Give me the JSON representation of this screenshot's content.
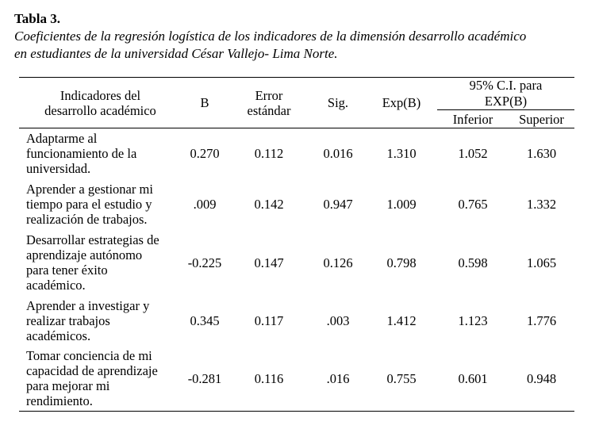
{
  "table": {
    "label": "Tabla 3.",
    "caption_line1": "Coeficientes de la regresión logística de los indicadores de la dimensión desarrollo académico",
    "caption_line2": "en estudiantes de la universidad César Vallejo- Lima Norte.",
    "headers": {
      "indicator_line1": "Indicadores del",
      "indicator_line2": "desarrollo académico",
      "b": "B",
      "error_line1": "Error",
      "error_line2": "estándar",
      "sig": "Sig.",
      "expb": "Exp(B)",
      "ci_line1": "95% C.I. para",
      "ci_line2": "EXP(B)",
      "inferior": "Inferior",
      "superior": "Superior"
    },
    "rows": [
      {
        "indicator_lines": [
          "Adaptarme al",
          "funcionamiento de la",
          "universidad."
        ],
        "b": "0.270",
        "error": "0.112",
        "sig": "0.016",
        "expb": "1.310",
        "inferior": "1.052",
        "superior": "1.630"
      },
      {
        "indicator_lines": [
          "Aprender a gestionar mi",
          "tiempo para el estudio y",
          "realización de trabajos."
        ],
        "b": ".009",
        "error": "0.142",
        "sig": "0.947",
        "expb": "1.009",
        "inferior": "0.765",
        "superior": "1.332"
      },
      {
        "indicator_lines": [
          "Desarrollar estrategias de",
          "aprendizaje autónomo",
          "para tener éxito",
          "académico."
        ],
        "b": "-0.225",
        "error": "0.147",
        "sig": "0.126",
        "expb": "0.798",
        "inferior": "0.598",
        "superior": "1.065"
      },
      {
        "indicator_lines": [
          "Aprender a investigar y",
          "realizar trabajos",
          "académicos."
        ],
        "b": "0.345",
        "error": "0.117",
        "sig": ".003",
        "expb": "1.412",
        "inferior": "1.123",
        "superior": "1.776"
      },
      {
        "indicator_lines": [
          "Tomar conciencia de mi",
          "capacidad de aprendizaje",
          "para mejorar mi",
          "rendimiento."
        ],
        "b": "-0.281",
        "error": "0.116",
        "sig": ".016",
        "expb": "0.755",
        "inferior": "0.601",
        "superior": "0.948"
      }
    ]
  }
}
